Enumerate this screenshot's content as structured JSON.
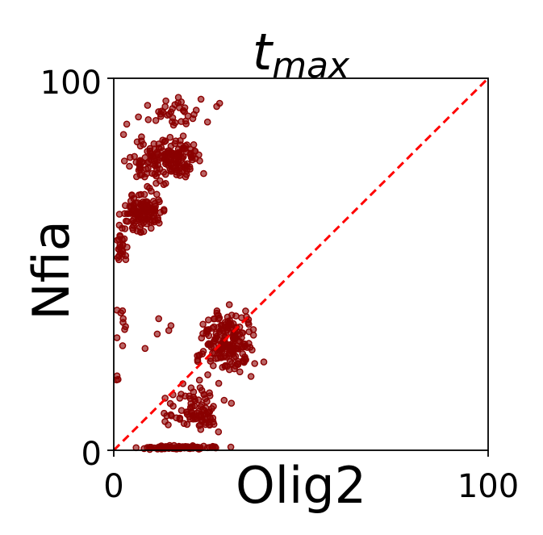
{
  "chart_data": {
    "type": "scatter",
    "title": {
      "main": "t",
      "subscript": "max"
    },
    "xlabel": "Olig2",
    "ylabel": "Nfia",
    "xlim": [
      0,
      100
    ],
    "ylim": [
      0,
      100
    ],
    "x_ticks": [
      0,
      100
    ],
    "y_ticks": [
      0,
      100
    ],
    "x_tick_labels": [
      "0",
      "100"
    ],
    "y_tick_labels": [
      "0",
      "100"
    ],
    "grid": false,
    "legend": "none",
    "reference_line": {
      "style": "dashed",
      "color": "#ff0000",
      "from": [
        0,
        0
      ],
      "to": [
        100,
        100
      ]
    },
    "marker": {
      "fill": "#8b0000",
      "edge": "#8b0000",
      "fill_opacity": 0.6
    },
    "clusters": [
      {
        "x_range": [
          0,
          31
        ],
        "y_range": [
          84,
          97
        ],
        "count": 40
      },
      {
        "x_range": [
          1,
          27
        ],
        "y_range": [
          70,
          86
        ],
        "count": 170
      },
      {
        "x_range": [
          0,
          15
        ],
        "y_range": [
          56,
          72
        ],
        "count": 120
      },
      {
        "x_range": [
          0,
          4
        ],
        "y_range": [
          49,
          62
        ],
        "count": 25
      },
      {
        "x_range": [
          0,
          5
        ],
        "y_range": [
          25,
          45
        ],
        "count": 9
      },
      {
        "x_range": [
          4,
          22
        ],
        "y_range": [
          25,
          40
        ],
        "count": 5
      },
      {
        "x_range": [
          0,
          2
        ],
        "y_range": [
          15,
          22
        ],
        "count": 3
      },
      {
        "x_range": [
          20,
          41
        ],
        "y_range": [
          17,
          41
        ],
        "count": 190
      },
      {
        "x_range": [
          10,
          33
        ],
        "y_range": [
          2,
          20
        ],
        "count": 95
      },
      {
        "x_range": [
          0,
          35
        ],
        "y_range": [
          0,
          1.5
        ],
        "count": 80
      }
    ]
  }
}
